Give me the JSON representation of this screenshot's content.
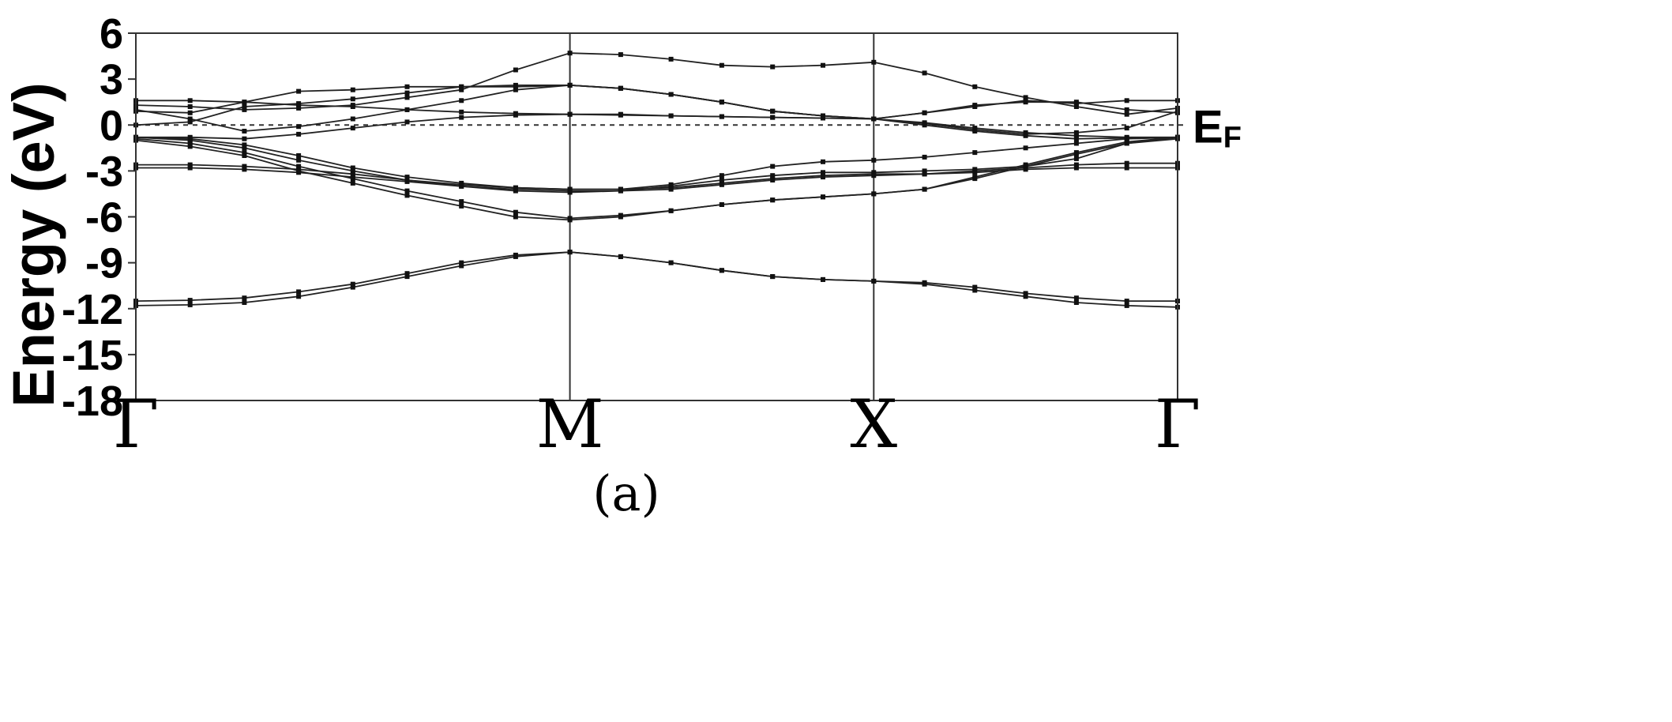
{
  "chart_data": {
    "type": "line",
    "ylabel": "Energy (eV)",
    "ylim": [
      -18,
      6
    ],
    "yticks": [
      "6",
      "3",
      "0",
      "-3",
      "-6",
      "-9",
      "-12",
      "-15",
      "-18"
    ],
    "ytick_values": [
      6,
      3,
      0,
      -3,
      -6,
      -9,
      -12,
      -15,
      -18
    ],
    "kpoints": [
      {
        "label": "Γ",
        "x": 0
      },
      {
        "label": "M",
        "x": 1
      },
      {
        "label": "X",
        "x": 1.7
      },
      {
        "label": "Γ",
        "x": 2.4
      }
    ],
    "xlim": [
      0,
      2.4
    ],
    "fermi_level": {
      "label_main": "E",
      "label_sub": "F",
      "value": 0
    },
    "grid": false,
    "caption": "(a)",
    "x": [
      0,
      0.125,
      0.25,
      0.375,
      0.5,
      0.625,
      0.75,
      0.875,
      1.0,
      1.117,
      1.233,
      1.35,
      1.467,
      1.583,
      1.7,
      1.817,
      1.933,
      2.05,
      2.167,
      2.283,
      2.4
    ],
    "series": [
      {
        "values": [
          -11.8,
          -11.75,
          -11.6,
          -11.2,
          -10.6,
          -9.9,
          -9.2,
          -8.6,
          -8.3,
          -8.6,
          -9.0,
          -9.5,
          -9.9,
          -10.1,
          -10.2,
          -10.4,
          -10.8,
          -11.2,
          -11.6,
          -11.8,
          -11.9
        ]
      },
      {
        "values": [
          -11.5,
          -11.45,
          -11.3,
          -10.9,
          -10.4,
          -9.7,
          -9.0,
          -8.5,
          -8.3,
          -8.6,
          -9.0,
          -9.5,
          -9.9,
          -10.1,
          -10.2,
          -10.3,
          -10.6,
          -11.0,
          -11.3,
          -11.5,
          -11.5
        ]
      },
      {
        "values": [
          -0.9,
          -1.2,
          -1.8,
          -2.7,
          -3.5,
          -4.3,
          -5.0,
          -5.7,
          -6.1,
          -5.9,
          -5.6,
          -5.2,
          -4.9,
          -4.7,
          -4.5,
          -4.2,
          -3.4,
          -2.6,
          -1.8,
          -1.1,
          -0.8
        ]
      },
      {
        "values": [
          -1.0,
          -1.4,
          -2.0,
          -3.0,
          -3.8,
          -4.6,
          -5.3,
          -6.0,
          -6.2,
          -6.0,
          -5.6,
          -5.2,
          -4.9,
          -4.7,
          -4.5,
          -4.2,
          -3.5,
          -2.7,
          -1.9,
          -1.2,
          -0.9
        ]
      },
      {
        "values": [
          -0.8,
          -1.0,
          -1.5,
          -2.3,
          -3.0,
          -3.6,
          -4.0,
          -4.3,
          -4.4,
          -4.3,
          -4.0,
          -3.6,
          -3.3,
          -3.1,
          -3.1,
          -3.0,
          -2.9,
          -2.7,
          -2.2,
          -1.2,
          -0.8
        ]
      },
      {
        "values": [
          -0.8,
          -0.9,
          -1.3,
          -2.0,
          -2.8,
          -3.4,
          -3.8,
          -4.1,
          -4.2,
          -4.2,
          -3.9,
          -3.3,
          -2.7,
          -2.4,
          -2.3,
          -2.1,
          -1.8,
          -1.5,
          -1.2,
          -0.9,
          -0.8
        ]
      },
      {
        "values": [
          -2.6,
          -2.6,
          -2.7,
          -2.9,
          -3.2,
          -3.6,
          -3.9,
          -4.1,
          -4.2,
          -4.2,
          -4.1,
          -3.8,
          -3.5,
          -3.3,
          -3.2,
          -3.2,
          -3.0,
          -2.8,
          -2.6,
          -2.5,
          -2.5
        ]
      },
      {
        "values": [
          -2.8,
          -2.8,
          -2.9,
          -3.1,
          -3.4,
          -3.7,
          -4.0,
          -4.2,
          -4.3,
          -4.3,
          -4.2,
          -3.9,
          -3.6,
          -3.4,
          -3.3,
          -3.2,
          -3.1,
          -2.9,
          -2.8,
          -2.8,
          -2.8
        ]
      },
      {
        "values": [
          -0.8,
          -0.8,
          -0.9,
          -0.6,
          -0.2,
          0.2,
          0.5,
          0.65,
          0.7,
          0.65,
          0.6,
          0.55,
          0.5,
          0.45,
          0.4,
          0.15,
          -0.2,
          -0.5,
          -0.7,
          -0.8,
          -0.8
        ]
      },
      {
        "values": [
          1.0,
          0.4,
          -0.4,
          -0.1,
          0.4,
          1.0,
          1.6,
          2.3,
          2.6,
          2.4,
          2.0,
          1.5,
          0.9,
          0.6,
          0.4,
          0.8,
          1.3,
          1.5,
          1.5,
          1.0,
          0.8
        ]
      },
      {
        "values": [
          1.6,
          1.6,
          1.5,
          1.3,
          1.2,
          1.0,
          0.85,
          0.75,
          0.7,
          0.7,
          0.6,
          0.55,
          0.5,
          0.45,
          0.4,
          0.0,
          -0.4,
          -0.7,
          -0.9,
          -0.85,
          -0.8
        ]
      },
      {
        "values": [
          1.3,
          1.2,
          1.0,
          1.1,
          1.3,
          1.8,
          2.3,
          3.6,
          4.7,
          4.6,
          4.3,
          3.9,
          3.8,
          3.9,
          4.1,
          3.4,
          2.5,
          1.8,
          1.2,
          0.7,
          1.1
        ]
      },
      {
        "values": [
          0.0,
          0.2,
          1.2,
          1.4,
          1.7,
          2.1,
          2.5,
          2.6,
          2.6,
          2.4,
          2.0,
          1.5,
          0.9,
          0.6,
          0.4,
          0.8,
          1.2,
          1.6,
          1.4,
          1.6,
          1.6
        ]
      },
      {
        "values": [
          0.9,
          0.8,
          1.5,
          2.2,
          2.3,
          2.5,
          2.5,
          2.5,
          2.6,
          2.4,
          2.0,
          1.5,
          0.9,
          0.6,
          0.4,
          0.1,
          -0.3,
          -0.6,
          -0.5,
          -0.2,
          0.9
        ]
      }
    ]
  }
}
